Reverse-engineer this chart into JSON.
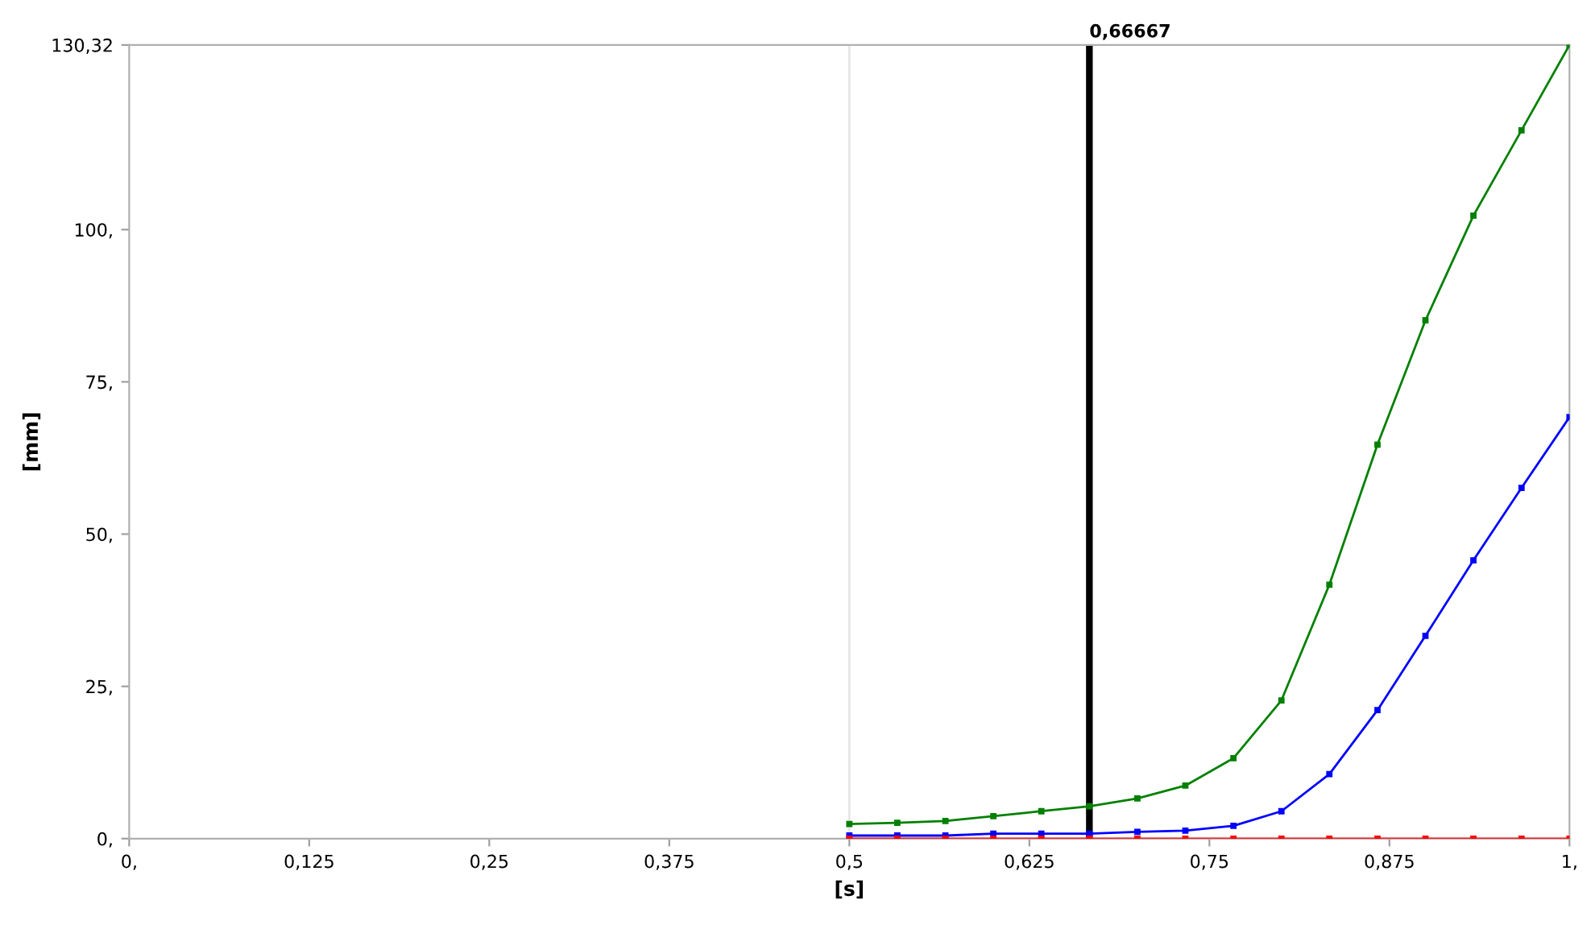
{
  "chart_data": {
    "type": "line",
    "xlabel": "[s]",
    "ylabel": "[mm]",
    "x": [
      0.5,
      0.5333,
      0.5667,
      0.6,
      0.6333,
      0.6667,
      0.7,
      0.7333,
      0.7667,
      0.8,
      0.8333,
      0.8667,
      0.9,
      0.9333,
      0.9667,
      1.0
    ],
    "series": [
      {
        "color": "#008000",
        "values": [
          2.4,
          2.6,
          2.9,
          3.7,
          4.5,
          5.3,
          6.6,
          8.7,
          13.2,
          22.7,
          41.7,
          64.7,
          85.1,
          102.3,
          116.3,
          130.32
        ]
      },
      {
        "color": "#0000ff",
        "values": [
          0.5,
          0.5,
          0.5,
          0.8,
          0.8,
          0.8,
          1.1,
          1.3,
          2.1,
          4.5,
          10.6,
          21.1,
          33.3,
          45.7,
          57.6,
          69.2
        ]
      },
      {
        "color": "#ff0000",
        "values": [
          0,
          0,
          0,
          0,
          0,
          0,
          0,
          0,
          0,
          0,
          0,
          0,
          0,
          0,
          0,
          0
        ]
      }
    ],
    "marker": "square",
    "line_style": "solid",
    "grid": false,
    "legend": false,
    "xlim": [
      0,
      1
    ],
    "ylim": [
      0,
      130.32
    ],
    "xticks": [
      {
        "value": 0,
        "label": "0,"
      },
      {
        "value": 0.125,
        "label": "0,125"
      },
      {
        "value": 0.25,
        "label": "0,25"
      },
      {
        "value": 0.375,
        "label": "0,375"
      },
      {
        "value": 0.5,
        "label": "0,5"
      },
      {
        "value": 0.625,
        "label": "0,625"
      },
      {
        "value": 0.75,
        "label": "0,75"
      },
      {
        "value": 0.875,
        "label": "0,875"
      },
      {
        "value": 1,
        "label": "1,"
      }
    ],
    "yticks": [
      {
        "value": 0,
        "label": "0,"
      },
      {
        "value": 25,
        "label": "25,"
      },
      {
        "value": 50,
        "label": "50,"
      },
      {
        "value": 75,
        "label": "75,"
      },
      {
        "value": 100,
        "label": "100,"
      },
      {
        "value": 130.32,
        "label": "130,32"
      }
    ],
    "ref_lines": [
      {
        "axis": "x",
        "value": 0.5,
        "color": "#e6e6e6"
      },
      {
        "axis": "x",
        "value": 0.66667,
        "label": "0,66667",
        "color": "#000000"
      }
    ]
  }
}
